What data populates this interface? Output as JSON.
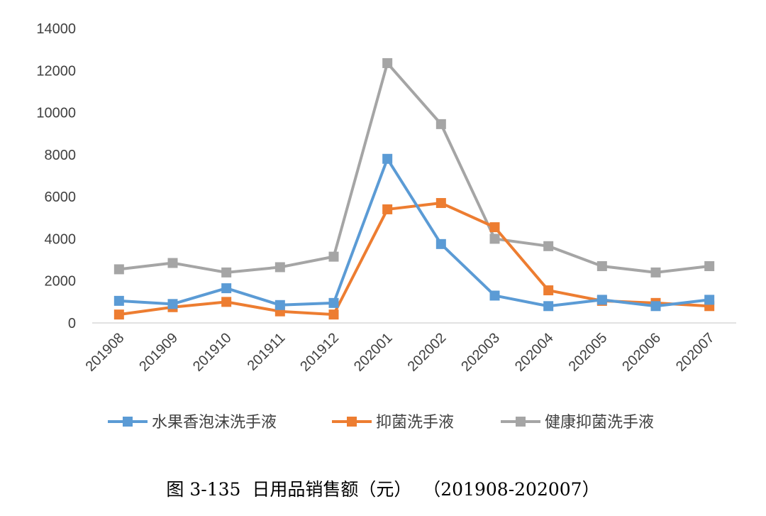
{
  "chart_data": {
    "type": "line",
    "categories": [
      "201908",
      "201909",
      "201910",
      "201911",
      "201912",
      "202001",
      "202002",
      "202003",
      "202004",
      "202005",
      "202006",
      "202007"
    ],
    "series": [
      {
        "name": "水果香泡沫洗手液",
        "color": "#5b9bd5",
        "values": [
          1050,
          900,
          1650,
          850,
          950,
          7800,
          3750,
          1300,
          800,
          1100,
          800,
          1100
        ]
      },
      {
        "name": "抑菌洗手液",
        "color": "#ed7d31",
        "values": [
          400,
          750,
          1000,
          550,
          400,
          5400,
          5700,
          4550,
          1550,
          1050,
          950,
          800
        ]
      },
      {
        "name": "健康抑菌洗手液",
        "color": "#a5a5a5",
        "values": [
          2550,
          2850,
          2400,
          2650,
          3150,
          12350,
          9450,
          4000,
          3650,
          2700,
          2400,
          2700
        ]
      }
    ],
    "yticks": [
      "0",
      "2000",
      "4000",
      "6000",
      "8000",
      "10000",
      "12000",
      "14000"
    ],
    "ylim": [
      0,
      14000
    ],
    "grid": false,
    "legend_position": "bottom",
    "marker": "square",
    "axis_color": "#d9d9d9"
  },
  "caption": {
    "label": "图 3-135",
    "title": "日用品销售额（元）",
    "range": "（201908-202007）"
  }
}
